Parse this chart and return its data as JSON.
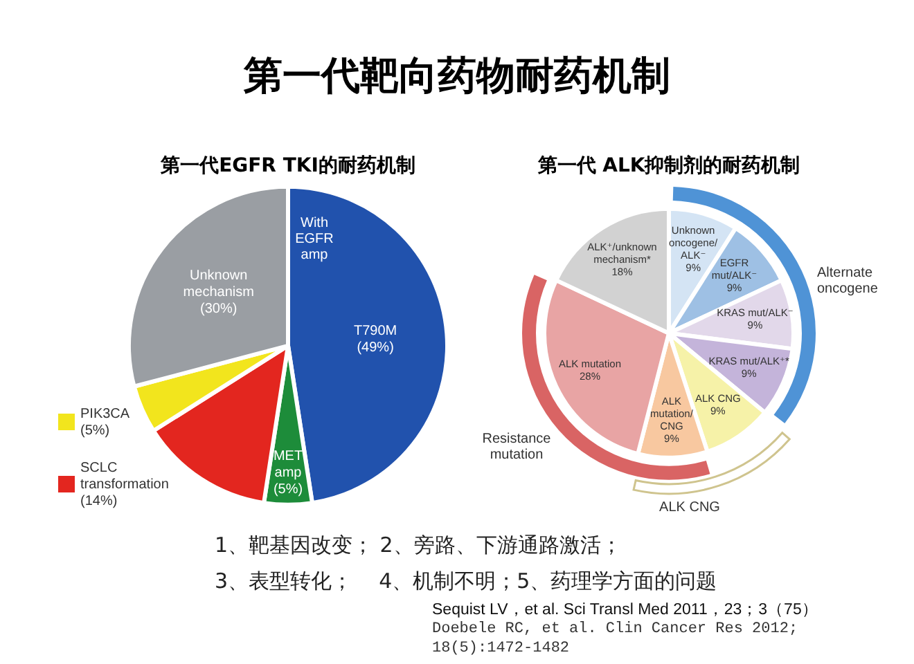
{
  "chart_data": [
    {
      "type": "other",
      "title": "第一代靶向药物耐药机制"
    },
    {
      "type": "pie",
      "title": "第一代EGFR TKI的耐药机制",
      "categories": [
        "T790M",
        "MET\namp",
        "SCLC\ntransformation",
        "PIK3CA",
        "Unknown\nmechanism"
      ],
      "values": [
        49,
        5,
        14,
        5,
        30
      ],
      "colors": [
        "#2152ad",
        "#1d8c3a",
        "#e3261f",
        "#f2e51d",
        "#9a9ea3"
      ],
      "value_labels": [
        "(49%)",
        "(5%)",
        "(14%)",
        "(5%)",
        "(30%)"
      ],
      "legend": "bottom left",
      "annotations": [
        "With\nEGFR\namp"
      ]
    },
    {
      "type": "pie",
      "title": "第一代 ALK抑制剂的耐药机制",
      "categories": [
        "Unknown\noncogene/\nALK⁻",
        "EGFR\nmut/ALK⁻",
        "KRAS mut/ALK⁻",
        "KRAS mut/ALK⁺*",
        "ALK CNG",
        "ALK\nmutation/\nCNG",
        "ALK mutation",
        "ALK⁺/unknown\nmechanism*"
      ],
      "values": [
        9,
        9,
        9,
        9,
        9,
        9,
        28,
        18
      ],
      "colors": [
        "#d4e4f4",
        "#9ec0e4",
        "#e2d8ea",
        "#c4b4da",
        "#f6f2a8",
        "#f8c8a0",
        "#e8a4a4",
        "#d2d2d2"
      ],
      "value_labels": [
        "9%",
        "9%",
        "9%",
        "9%",
        "9%",
        "9%",
        "28%",
        "18%"
      ],
      "annotations": [
        "Alternate\noncogene",
        "Resistance\nmutation",
        "ALK CNG"
      ]
    },
    {
      "type": "other",
      "annotations": [
        "1、靶基因改变； 2、旁路、下游通路激活；",
        "3、表型转化；    4、机制不明；5、药理学方面的问题",
        "Sequist LV，et al. Sci Transl Med 2011，23；3（75）",
        "Doebele RC, et al. Clin Cancer Res 2012; 18(5):1472-1482"
      ]
    }
  ]
}
